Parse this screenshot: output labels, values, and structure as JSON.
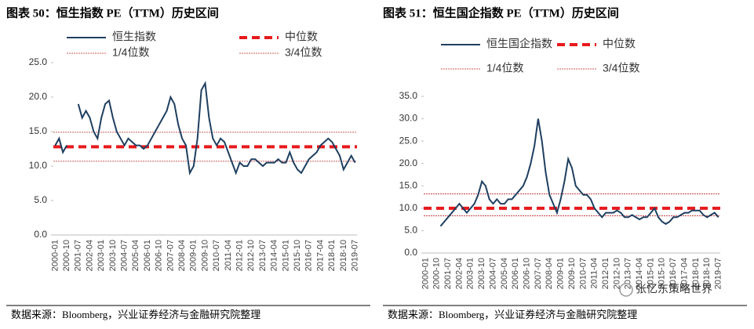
{
  "chart_data": [
    {
      "type": "line",
      "title": "图表 50：恒生指数 PE（TTM）历史区间",
      "source": "数据来源：Bloomberg，兴业证券经济与金融研究院整理",
      "categories": [
        "2000-01",
        null,
        null,
        "2000-10",
        null,
        null,
        "2001-07",
        null,
        null,
        "2002-04",
        null,
        null,
        "2003-01",
        null,
        null,
        "2003-10",
        null,
        null,
        "2004-07",
        null,
        null,
        "2005-04",
        null,
        null,
        "2006-01",
        null,
        null,
        "2006-10",
        null,
        null,
        "2007-07",
        null,
        null,
        "2008-04",
        null,
        null,
        "2009-01",
        null,
        null,
        "2009-10",
        null,
        null,
        "2010-07",
        null,
        null,
        "2011-04",
        null,
        null,
        "2012-01",
        null,
        null,
        "2012-10",
        null,
        null,
        "2013-07",
        null,
        null,
        "2014-04",
        null,
        null,
        "2015-01",
        null,
        null,
        "2015-10",
        null,
        null,
        "2016-07",
        null,
        null,
        "2017-04",
        null,
        null,
        "2018-01",
        null,
        null,
        "2018-10",
        null,
        null,
        "2019-07"
      ],
      "series": [
        {
          "name": "恒生指数",
          "color": "#1f3f60",
          "values": [
            13,
            14,
            12,
            13,
            null,
            null,
            19,
            17,
            18,
            17,
            15,
            14,
            17,
            19,
            19.5,
            17,
            15,
            14,
            13,
            14,
            13.5,
            13,
            13,
            12.5,
            13,
            14,
            15,
            16,
            17,
            18,
            20,
            19,
            16,
            14,
            13,
            9,
            10,
            14,
            21,
            22,
            17,
            14,
            13,
            14,
            13.5,
            12,
            10.5,
            9,
            10.5,
            10,
            10,
            11,
            11,
            10.5,
            10,
            10.5,
            10.5,
            10.5,
            11,
            10.5,
            10.5,
            12,
            10.5,
            9.5,
            9,
            10,
            11,
            11.5,
            12,
            13,
            13.5,
            14,
            13.5,
            12.5,
            11.5,
            9.5,
            10.5,
            11.5,
            10.5
          ]
        }
      ],
      "reference_lines": [
        {
          "name": "中位数",
          "value": 12.8,
          "color": "#e8191c",
          "style": "median"
        },
        {
          "name": "1/4位数",
          "value": 10.7,
          "color": "#c0282a",
          "style": "quartile"
        },
        {
          "name": "3/4位数",
          "value": 14.9,
          "color": "#c0282a",
          "style": "quartile"
        }
      ],
      "ylim": [
        0,
        25
      ],
      "yticks": [
        {
          "value": 0,
          "label": "0.0"
        },
        {
          "value": 5,
          "label": "5.0"
        },
        {
          "value": 10,
          "label": "10.0"
        },
        {
          "value": 15,
          "label": "15.0"
        },
        {
          "value": 20,
          "label": "20.0"
        },
        {
          "value": 25,
          "label": "25.0"
        }
      ]
    },
    {
      "type": "line",
      "title": "图表 51：恒生国企指数 PE（TTM）历史区间",
      "source": "数据来源：Bloomberg，兴业证券经济与金融研究院整理",
      "watermark": "张忆东策略世界",
      "categories": [
        "2000-01",
        null,
        null,
        "2000-10",
        null,
        null,
        "2001-07",
        null,
        null,
        "2002-04",
        null,
        null,
        "2003-01",
        null,
        null,
        "2003-10",
        null,
        null,
        "2004-07",
        null,
        null,
        "2005-04",
        null,
        null,
        "2006-01",
        null,
        null,
        "2006-10",
        null,
        null,
        "2007-07",
        null,
        null,
        "2008-04",
        null,
        null,
        "2009-01",
        null,
        null,
        "2009-10",
        null,
        null,
        "2010-07",
        null,
        null,
        "2011-04",
        null,
        null,
        "2012-01",
        null,
        null,
        "2012-10",
        null,
        null,
        "2013-07",
        null,
        null,
        "2014-04",
        null,
        null,
        "2015-01",
        null,
        null,
        "2015-10",
        null,
        null,
        "2016-07",
        null,
        null,
        "2017-04",
        null,
        null,
        "2018-01",
        null,
        null,
        "2018-10",
        null,
        null,
        "2019-07"
      ],
      "series": [
        {
          "name": "恒生国企指数",
          "color": "#1f3f60",
          "values": [
            null,
            null,
            null,
            null,
            6,
            7,
            8,
            9,
            10,
            11,
            10,
            9,
            10,
            11,
            13,
            16,
            15,
            12,
            11,
            12,
            11,
            11,
            12,
            12,
            13,
            14,
            15,
            17,
            20,
            24,
            30,
            25,
            18,
            13,
            11,
            9,
            12,
            16,
            21,
            19,
            15,
            14,
            13,
            13,
            12,
            10,
            9,
            8,
            9,
            9,
            9,
            9.5,
            9,
            8,
            8,
            8.5,
            8,
            7.5,
            8,
            8,
            9,
            10,
            8,
            7,
            6.5,
            7,
            8,
            8,
            8.5,
            9,
            9,
            9.5,
            9.5,
            9.5,
            8.5,
            8,
            8.5,
            9,
            8
          ]
        }
      ],
      "reference_lines": [
        {
          "name": "中位数",
          "value": 10,
          "color": "#e8191c",
          "style": "median"
        },
        {
          "name": "1/4位数",
          "value": 8.3,
          "color": "#c0282a",
          "style": "quartile"
        },
        {
          "name": "3/4位数",
          "value": 13.2,
          "color": "#c0282a",
          "style": "quartile"
        }
      ],
      "ylim": [
        0,
        35
      ],
      "yticks": [
        {
          "value": 0,
          "label": "0.0"
        },
        {
          "value": 5,
          "label": "5.0"
        },
        {
          "value": 10,
          "label": "10.0"
        },
        {
          "value": 15,
          "label": "15.0"
        },
        {
          "value": 20,
          "label": "20.0"
        },
        {
          "value": 25,
          "label": "25.0"
        },
        {
          "value": 30,
          "label": "30.0"
        },
        {
          "value": 35,
          "label": "35.0"
        }
      ]
    }
  ]
}
